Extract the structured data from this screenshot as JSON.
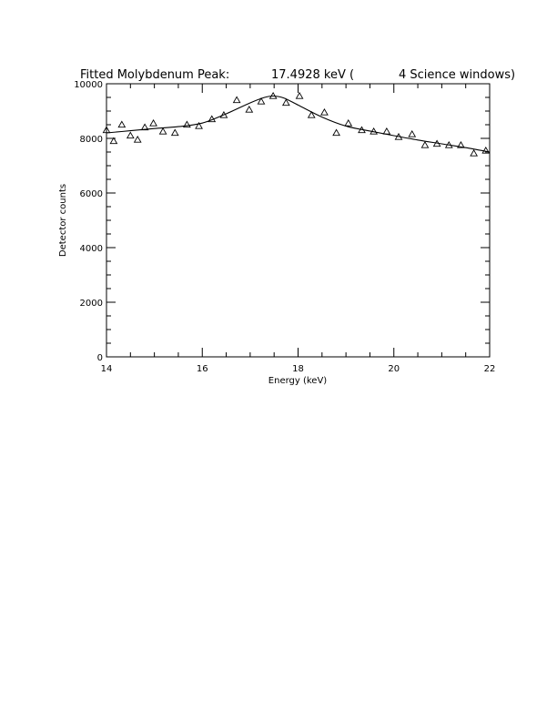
{
  "chart_data": {
    "type": "scatter",
    "title": {
      "prefix": "Fitted Molybdenum Peak:",
      "energy": "17.4928 keV (",
      "windows": "4 Science windows)"
    },
    "xlabel": "Energy (keV)",
    "ylabel": "Detector counts",
    "xlim": [
      14,
      22
    ],
    "ylim": [
      0,
      10000
    ],
    "x_ticks": [
      "14",
      "16",
      "18",
      "20",
      "22"
    ],
    "y_ticks": [
      "0",
      "2000",
      "4000",
      "6000",
      "8000",
      "10000"
    ],
    "grid": false,
    "series": [
      {
        "marker": "triangle",
        "points": [
          [
            14.0,
            8300
          ],
          [
            14.15,
            7900
          ],
          [
            14.32,
            8500
          ],
          [
            14.5,
            8100
          ],
          [
            14.65,
            7950
          ],
          [
            14.8,
            8400
          ],
          [
            14.98,
            8550
          ],
          [
            15.18,
            8250
          ],
          [
            15.43,
            8200
          ],
          [
            15.68,
            8500
          ],
          [
            15.93,
            8450
          ],
          [
            16.2,
            8700
          ],
          [
            16.45,
            8850
          ],
          [
            16.72,
            9400
          ],
          [
            16.98,
            9050
          ],
          [
            17.23,
            9350
          ],
          [
            17.48,
            9550
          ],
          [
            17.75,
            9300
          ],
          [
            18.03,
            9550
          ],
          [
            18.28,
            8850
          ],
          [
            18.55,
            8950
          ],
          [
            18.8,
            8200
          ],
          [
            19.05,
            8550
          ],
          [
            19.33,
            8300
          ],
          [
            19.58,
            8250
          ],
          [
            19.85,
            8250
          ],
          [
            20.1,
            8050
          ],
          [
            20.38,
            8150
          ],
          [
            20.65,
            7750
          ],
          [
            20.9,
            7800
          ],
          [
            21.15,
            7750
          ],
          [
            21.4,
            7750
          ],
          [
            21.67,
            7450
          ],
          [
            21.92,
            7550
          ]
        ]
      },
      {
        "type": "line",
        "points": [
          [
            14.0,
            8200
          ],
          [
            14.5,
            8280
          ],
          [
            15.0,
            8360
          ],
          [
            15.5,
            8430
          ],
          [
            16.0,
            8560
          ],
          [
            16.5,
            8900
          ],
          [
            17.0,
            9300
          ],
          [
            17.3,
            9500
          ],
          [
            17.49,
            9550
          ],
          [
            17.7,
            9480
          ],
          [
            18.0,
            9220
          ],
          [
            18.5,
            8780
          ],
          [
            19.0,
            8450
          ],
          [
            19.5,
            8270
          ],
          [
            20.0,
            8100
          ],
          [
            20.5,
            7940
          ],
          [
            21.0,
            7800
          ],
          [
            21.5,
            7660
          ],
          [
            22.0,
            7500
          ]
        ]
      }
    ]
  }
}
